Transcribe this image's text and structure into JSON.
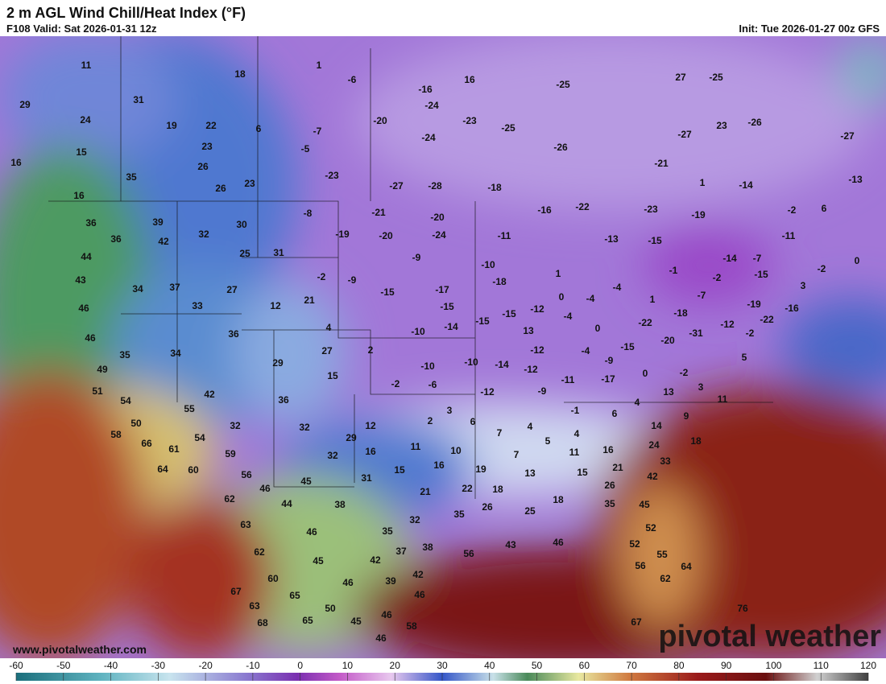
{
  "header": {
    "title": "2 m AGL Wind Chill/Heat Index (°F)",
    "valid": "F108 Valid: Sat 2026-01-31 12z",
    "init": "Init: Tue 2026-01-27 00z GFS"
  },
  "footer": {
    "website": "www.pivotalweather.com",
    "watermark": "pivotal weather"
  },
  "colorbar_ticks": [
    -60,
    -50,
    -40,
    -30,
    -20,
    -10,
    0,
    10,
    20,
    30,
    40,
    50,
    60,
    70,
    80,
    90,
    100,
    110,
    120
  ],
  "map_labels": [
    11,
    18,
    1,
    -6,
    16,
    -25,
    27,
    -25,
    29,
    31,
    -16,
    24,
    19,
    22,
    6,
    -7,
    -20,
    -23,
    -25,
    -24,
    15,
    23,
    -5,
    -24,
    -26,
    -27,
    23,
    -26,
    -27,
    16,
    35,
    26,
    -23,
    -21,
    1,
    -14,
    -13,
    26,
    23,
    -27,
    -28,
    -18,
    16,
    36,
    39,
    -8,
    -21,
    -20,
    -16,
    -22,
    -23,
    -19,
    -2,
    6,
    36,
    42,
    32,
    30,
    -19,
    -20,
    -24,
    -11,
    -13,
    -15,
    -11,
    44,
    25,
    31,
    -9,
    -10,
    0,
    -14,
    -7,
    -2,
    43,
    34,
    37,
    27,
    -2,
    -9,
    -18,
    1,
    -4,
    -1,
    -2,
    -15,
    3,
    12,
    21,
    -15,
    -17,
    0,
    -4,
    1,
    -7,
    -19,
    46,
    33,
    -15,
    -12,
    -15,
    -18,
    -16,
    46,
    36,
    4,
    -10,
    -14,
    -15,
    13,
    -4,
    0,
    -22,
    -31,
    -12,
    -22,
    -2,
    35,
    34,
    27,
    2,
    -10,
    -14,
    -12,
    -4,
    -15,
    -20,
    49,
    29,
    15,
    -10,
    -12,
    -9,
    0,
    -2,
    5,
    51,
    42,
    -2,
    -6,
    -12,
    -11,
    -17,
    3,
    13,
    54,
    36,
    3,
    -9,
    -1,
    4,
    11,
    55,
    50,
    32,
    32,
    12,
    2,
    6,
    4,
    6,
    9,
    58,
    66,
    54,
    29,
    7,
    5,
    4,
    16,
    14,
    24,
    18,
    61,
    59,
    32,
    16,
    11,
    10,
    7,
    11,
    33,
    64,
    60,
    56,
    31,
    15,
    16,
    19,
    13,
    15,
    21,
    42,
    45,
    46,
    21,
    22,
    18,
    26,
    62,
    44,
    38,
    26,
    35,
    25,
    18,
    35,
    45,
    63,
    46,
    35,
    32,
    52,
    62,
    45,
    42,
    37,
    38,
    56,
    43,
    46,
    52,
    55,
    60,
    46,
    39,
    42,
    56,
    62,
    64,
    67,
    65,
    46,
    63,
    50,
    76,
    68,
    65,
    45,
    46,
    58,
    67,
    46
  ]
}
